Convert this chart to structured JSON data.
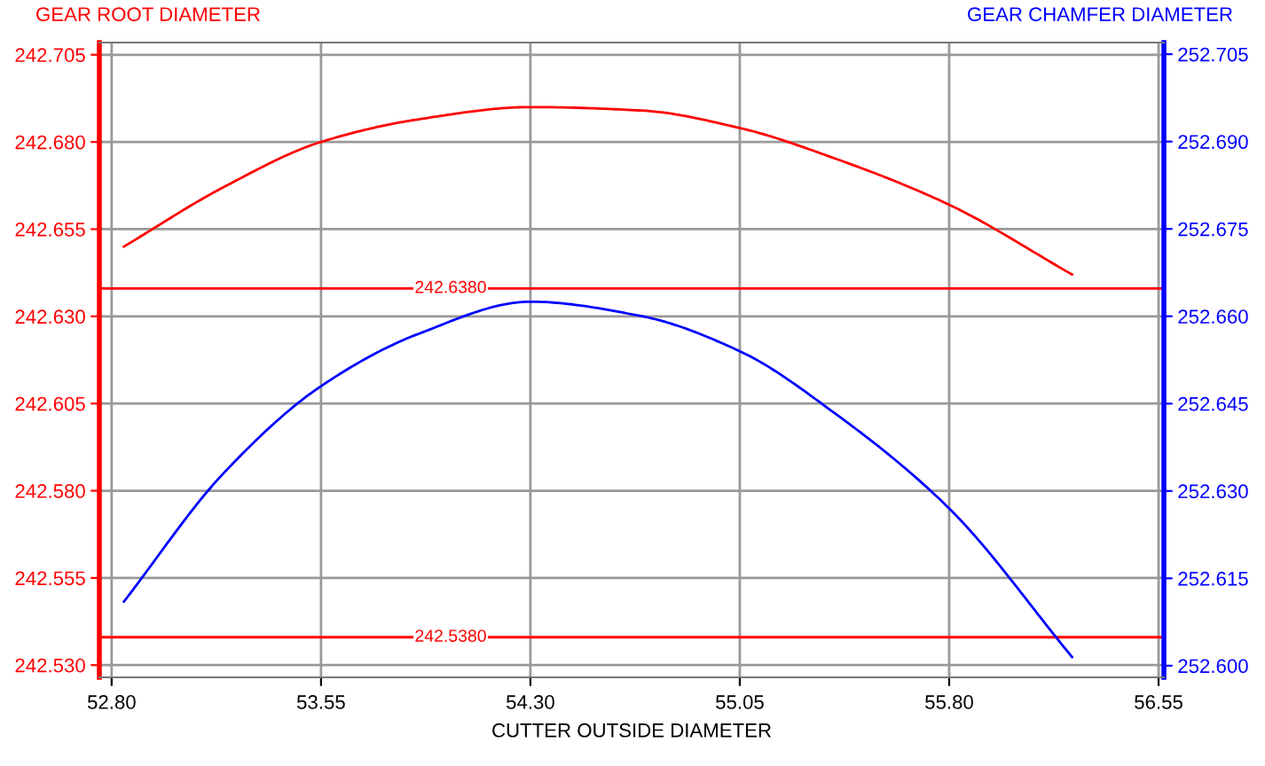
{
  "chart_data": {
    "type": "line",
    "xlabel": "CUTTER OUTSIDE DIAMETER",
    "ylabel": "GEAR ROOT DIAMETER",
    "y2label": "GEAR CHAMFER DIAMETER",
    "x": [
      52.844,
      53.2,
      53.55,
      53.9,
      54.3,
      54.7,
      55.05,
      55.4,
      55.8,
      56.24
    ],
    "series": [
      {
        "color": "#ff0000",
        "values": [
          242.65,
          242.667,
          242.68,
          242.6865,
          242.69,
          242.689,
          242.684,
          242.675,
          242.662,
          242.642
        ]
      },
      {
        "color": "#0000ff",
        "axis": "y2",
        "values": [
          252.611,
          252.633,
          252.648,
          252.657,
          252.6625,
          252.66,
          252.654,
          252.643,
          252.627,
          252.6015
        ]
      }
    ],
    "xlim": [
      52.756,
      56.569
    ],
    "xticks": [
      {
        "value": 52.8,
        "label": "52.80"
      },
      {
        "value": 53.55,
        "label": "53.55"
      },
      {
        "value": 54.3,
        "label": "54.30"
      },
      {
        "value": 55.05,
        "label": "55.05"
      },
      {
        "value": 55.8,
        "label": "55.80"
      },
      {
        "value": 56.55,
        "label": "56.55"
      }
    ],
    "ylim": [
      242.5265,
      242.7085
    ],
    "yticks": [
      {
        "value": 242.53,
        "label": "242.530"
      },
      {
        "value": 242.555,
        "label": "242.555"
      },
      {
        "value": 242.58,
        "label": "242.580"
      },
      {
        "value": 242.605,
        "label": "242.605"
      },
      {
        "value": 242.63,
        "label": "242.630"
      },
      {
        "value": 242.655,
        "label": "242.655"
      },
      {
        "value": 242.68,
        "label": "242.680"
      },
      {
        "value": 242.705,
        "label": "242.705"
      }
    ],
    "y2lim": [
      252.598,
      252.707
    ],
    "y2ticks": [
      {
        "value": 252.6,
        "label": "252.600"
      },
      {
        "value": 252.615,
        "label": "252.615"
      },
      {
        "value": 252.63,
        "label": "252.630"
      },
      {
        "value": 252.645,
        "label": "252.645"
      },
      {
        "value": 252.66,
        "label": "252.660"
      },
      {
        "value": 252.675,
        "label": "252.675"
      },
      {
        "value": 252.69,
        "label": "252.690"
      },
      {
        "value": 252.705,
        "label": "252.705"
      }
    ],
    "ref_lines": [
      {
        "axis": "y",
        "value": 242.638,
        "label": "242.6380",
        "color": "#ff0000"
      },
      {
        "axis": "y",
        "value": 242.538,
        "label": "242.5380",
        "color": "#ff0000"
      }
    ],
    "grid": true,
    "legend": false,
    "marker": "none",
    "line_style": "solid"
  }
}
